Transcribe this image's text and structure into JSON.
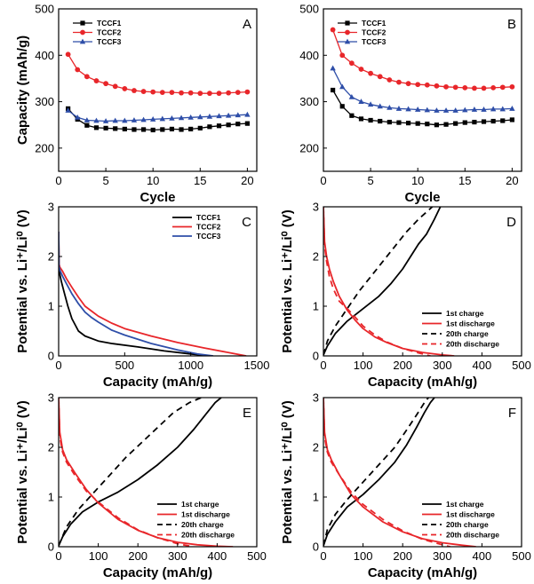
{
  "chart_data": [
    {
      "panel": "A",
      "type": "line",
      "xlabel": "Cycle",
      "ylabel": "Capacity (mAh/g)",
      "xlim": [
        0,
        21
      ],
      "ylim": [
        150,
        500
      ],
      "xticks": [
        0,
        5,
        10,
        15,
        20
      ],
      "yticks": [
        200,
        300,
        400,
        500
      ],
      "legend": "top-left",
      "series": [
        {
          "name": "TCCF1",
          "color": "#000000",
          "marker": "square",
          "x": [
            1,
            2,
            3,
            4,
            5,
            6,
            7,
            8,
            9,
            10,
            11,
            12,
            13,
            14,
            15,
            16,
            17,
            18,
            19,
            20
          ],
          "y": [
            285,
            262,
            249,
            244,
            243,
            242,
            241,
            240,
            240,
            239,
            240,
            241,
            240,
            241,
            243,
            246,
            248,
            250,
            252,
            253
          ]
        },
        {
          "name": "TCCF2",
          "color": "#e8262a",
          "marker": "circle",
          "x": [
            1,
            2,
            3,
            4,
            5,
            6,
            7,
            8,
            9,
            10,
            11,
            12,
            13,
            14,
            15,
            16,
            17,
            18,
            19,
            20
          ],
          "y": [
            402,
            369,
            354,
            345,
            339,
            333,
            328,
            324,
            322,
            321,
            320,
            320,
            319,
            319,
            318,
            318,
            318,
            319,
            320,
            321
          ]
        },
        {
          "name": "TCCF3",
          "color": "#2e4ea8",
          "marker": "triangle",
          "x": [
            1,
            2,
            3,
            4,
            5,
            6,
            7,
            8,
            9,
            10,
            11,
            12,
            13,
            14,
            15,
            16,
            17,
            18,
            19,
            20
          ],
          "y": [
            281,
            266,
            260,
            259,
            258,
            259,
            259,
            260,
            261,
            262,
            263,
            264,
            265,
            266,
            267,
            268,
            269,
            270,
            271,
            272
          ]
        }
      ]
    },
    {
      "panel": "B",
      "type": "line",
      "xlabel": "Cycle",
      "ylabel": "",
      "xlim": [
        0,
        21
      ],
      "ylim": [
        150,
        500
      ],
      "xticks": [
        0,
        5,
        10,
        15,
        20
      ],
      "yticks": [
        200,
        300,
        400,
        500
      ],
      "legend": "top-left",
      "series": [
        {
          "name": "TCCF1",
          "color": "#000000",
          "marker": "square",
          "x": [
            1,
            2,
            3,
            4,
            5,
            6,
            7,
            8,
            9,
            10,
            11,
            12,
            13,
            14,
            15,
            16,
            17,
            18,
            19,
            20
          ],
          "y": [
            325,
            290,
            270,
            263,
            260,
            258,
            256,
            255,
            254,
            253,
            252,
            250,
            251,
            253,
            255,
            256,
            257,
            258,
            259,
            261
          ]
        },
        {
          "name": "TCCF2",
          "color": "#e8262a",
          "marker": "circle",
          "x": [
            1,
            2,
            3,
            4,
            5,
            6,
            7,
            8,
            9,
            10,
            11,
            12,
            13,
            14,
            15,
            16,
            17,
            18,
            19,
            20
          ],
          "y": [
            455,
            400,
            383,
            370,
            361,
            354,
            347,
            342,
            339,
            337,
            336,
            334,
            332,
            331,
            330,
            329,
            329,
            330,
            331,
            332
          ]
        },
        {
          "name": "TCCF3",
          "color": "#2e4ea8",
          "marker": "triangle",
          "x": [
            1,
            2,
            3,
            4,
            5,
            6,
            7,
            8,
            9,
            10,
            11,
            12,
            13,
            14,
            15,
            16,
            17,
            18,
            19,
            20
          ],
          "y": [
            372,
            332,
            310,
            300,
            294,
            290,
            287,
            285,
            284,
            283,
            282,
            281,
            281,
            281,
            282,
            283,
            283,
            284,
            284,
            285
          ]
        }
      ]
    },
    {
      "panel": "C",
      "type": "line",
      "xlabel": "Capacity (mAh/g)",
      "ylabel": "Potential vs. Li⁺/Li⁰ (V)",
      "xlim": [
        0,
        1500
      ],
      "ylim": [
        0,
        3
      ],
      "xticks": [
        0,
        500,
        1000,
        1500
      ],
      "yticks": [
        0,
        1,
        2,
        3
      ],
      "legend": "top-right",
      "series": [
        {
          "name": "TCCF1",
          "color": "#000000",
          "dash": "",
          "x": [
            0,
            3,
            8,
            20,
            40,
            70,
            100,
            150,
            200,
            300,
            400,
            600,
            800,
            1000,
            1150
          ],
          "y": [
            2.5,
            1.85,
            1.65,
            1.5,
            1.3,
            1.0,
            0.75,
            0.5,
            0.4,
            0.3,
            0.25,
            0.18,
            0.1,
            0.04,
            0
          ]
        },
        {
          "name": "TCCF2",
          "color": "#e8262a",
          "dash": "",
          "x": [
            0,
            3,
            10,
            30,
            60,
            100,
            150,
            200,
            250,
            300,
            400,
            500,
            700,
            900,
            1100,
            1300,
            1420
          ],
          "y": [
            2.5,
            1.85,
            1.78,
            1.7,
            1.55,
            1.38,
            1.18,
            1.0,
            0.9,
            0.8,
            0.66,
            0.55,
            0.4,
            0.27,
            0.16,
            0.06,
            0
          ]
        },
        {
          "name": "TCCF3",
          "color": "#2e4ea8",
          "dash": "",
          "x": [
            0,
            3,
            10,
            30,
            60,
            100,
            150,
            200,
            250,
            300,
            400,
            500,
            700,
            900,
            1050,
            1170
          ],
          "y": [
            2.5,
            1.8,
            1.72,
            1.6,
            1.45,
            1.25,
            1.05,
            0.88,
            0.77,
            0.68,
            0.52,
            0.42,
            0.25,
            0.12,
            0.04,
            0
          ]
        }
      ]
    },
    {
      "panel": "D",
      "type": "line",
      "xlabel": "Capacity (mAh/g)",
      "ylabel": "Potential vs. Li⁺/Li⁰ (V)",
      "xlim": [
        0,
        500
      ],
      "ylim": [
        0,
        3
      ],
      "xticks": [
        0,
        100,
        200,
        300,
        400,
        500
      ],
      "yticks": [
        0,
        1,
        2,
        3
      ],
      "legend": "bottom-right",
      "series": [
        {
          "name": "1st charge",
          "color": "#000000",
          "dash": "",
          "x": [
            0,
            10,
            30,
            60,
            100,
            140,
            170,
            200,
            220,
            240,
            260,
            280,
            295
          ],
          "y": [
            0.02,
            0.2,
            0.45,
            0.7,
            0.95,
            1.2,
            1.45,
            1.75,
            2.0,
            2.25,
            2.45,
            2.75,
            3.0
          ]
        },
        {
          "name": "1st discharge",
          "color": "#e8262a",
          "dash": "",
          "x": [
            0,
            3,
            8,
            15,
            25,
            40,
            60,
            80,
            100,
            130,
            160,
            200,
            250,
            300,
            330
          ],
          "y": [
            3.0,
            2.3,
            2.0,
            1.75,
            1.5,
            1.2,
            0.92,
            0.72,
            0.55,
            0.38,
            0.27,
            0.15,
            0.07,
            0.02,
            0
          ]
        },
        {
          "name": "20th charge",
          "color": "#000000",
          "dash": "7,5",
          "x": [
            0,
            10,
            30,
            60,
            90,
            120,
            150,
            180,
            210,
            240,
            275
          ],
          "y": [
            0.02,
            0.3,
            0.6,
            0.95,
            1.3,
            1.6,
            1.9,
            2.2,
            2.5,
            2.75,
            3.0
          ]
        },
        {
          "name": "20th discharge",
          "color": "#e8262a",
          "dash": "7,5",
          "x": [
            0,
            3,
            8,
            15,
            25,
            40,
            60,
            80,
            100,
            130,
            160,
            200,
            240,
            270
          ],
          "y": [
            3.0,
            2.2,
            1.9,
            1.6,
            1.35,
            1.1,
            0.95,
            0.78,
            0.6,
            0.42,
            0.28,
            0.15,
            0.06,
            0
          ]
        }
      ]
    },
    {
      "panel": "E",
      "type": "line",
      "xlabel": "Capacity (mAh/g)",
      "ylabel": "Potential vs. Li⁺/Li⁰ (V)",
      "xlim": [
        0,
        500
      ],
      "ylim": [
        0,
        3
      ],
      "xticks": [
        0,
        100,
        200,
        300,
        400,
        500
      ],
      "yticks": [
        0,
        1,
        2,
        3
      ],
      "legend": "bottom-right",
      "series": [
        {
          "name": "1st charge",
          "color": "#000000",
          "dash": "",
          "x": [
            0,
            10,
            30,
            60,
            100,
            150,
            200,
            250,
            300,
            340,
            370,
            395,
            410
          ],
          "y": [
            0.02,
            0.2,
            0.45,
            0.7,
            0.9,
            1.1,
            1.35,
            1.65,
            2.0,
            2.35,
            2.65,
            2.9,
            3.0
          ]
        },
        {
          "name": "1st discharge",
          "color": "#e8262a",
          "dash": "",
          "x": [
            0,
            3,
            10,
            20,
            40,
            70,
            100,
            150,
            200,
            250,
            300,
            350,
            400,
            440
          ],
          "y": [
            3.0,
            2.3,
            1.95,
            1.75,
            1.5,
            1.15,
            0.88,
            0.55,
            0.33,
            0.18,
            0.09,
            0.04,
            0.01,
            0
          ]
        },
        {
          "name": "20th charge",
          "color": "#000000",
          "dash": "7,5",
          "x": [
            0,
            20,
            50,
            90,
            130,
            170,
            210,
            250,
            290,
            330,
            360
          ],
          "y": [
            0.02,
            0.4,
            0.75,
            1.1,
            1.45,
            1.8,
            2.1,
            2.4,
            2.7,
            2.9,
            3.0
          ]
        },
        {
          "name": "20th discharge",
          "color": "#e8262a",
          "dash": "7,5",
          "x": [
            0,
            3,
            10,
            20,
            40,
            70,
            100,
            150,
            200,
            250,
            300,
            340
          ],
          "y": [
            3.0,
            2.2,
            1.9,
            1.7,
            1.45,
            1.12,
            0.9,
            0.58,
            0.34,
            0.18,
            0.06,
            0
          ]
        }
      ]
    },
    {
      "panel": "F",
      "type": "line",
      "xlabel": "Capacity (mAh/g)",
      "ylabel": "Potential vs. Li⁺/Li⁰ (V)",
      "xlim": [
        0,
        500
      ],
      "ylim": [
        0,
        3
      ],
      "xticks": [
        0,
        100,
        200,
        300,
        400,
        500
      ],
      "yticks": [
        0,
        1,
        2,
        3
      ],
      "legend": "bottom-right",
      "series": [
        {
          "name": "1st charge",
          "color": "#000000",
          "dash": "",
          "x": [
            0,
            10,
            30,
            60,
            100,
            140,
            180,
            210,
            235,
            255,
            270,
            280
          ],
          "y": [
            0.02,
            0.25,
            0.5,
            0.8,
            1.05,
            1.35,
            1.7,
            2.05,
            2.4,
            2.7,
            2.9,
            3.0
          ]
        },
        {
          "name": "1st discharge",
          "color": "#e8262a",
          "dash": "",
          "x": [
            0,
            3,
            10,
            20,
            40,
            70,
            100,
            150,
            200,
            250,
            300,
            350,
            385
          ],
          "y": [
            3.0,
            2.3,
            1.95,
            1.75,
            1.45,
            1.05,
            0.8,
            0.5,
            0.3,
            0.16,
            0.08,
            0.03,
            0
          ]
        },
        {
          "name": "20th charge",
          "color": "#000000",
          "dash": "7,5",
          "x": [
            0,
            10,
            30,
            60,
            100,
            140,
            180,
            210,
            235,
            255,
            265
          ],
          "y": [
            0.02,
            0.35,
            0.65,
            0.95,
            1.3,
            1.65,
            2.0,
            2.35,
            2.65,
            2.9,
            3.0
          ]
        },
        {
          "name": "20th discharge",
          "color": "#e8262a",
          "dash": "7,5",
          "x": [
            0,
            3,
            10,
            20,
            40,
            70,
            100,
            150,
            200,
            250,
            300,
            320
          ],
          "y": [
            3.0,
            2.2,
            1.9,
            1.7,
            1.45,
            1.1,
            0.85,
            0.55,
            0.32,
            0.15,
            0.04,
            0
          ]
        }
      ]
    }
  ]
}
